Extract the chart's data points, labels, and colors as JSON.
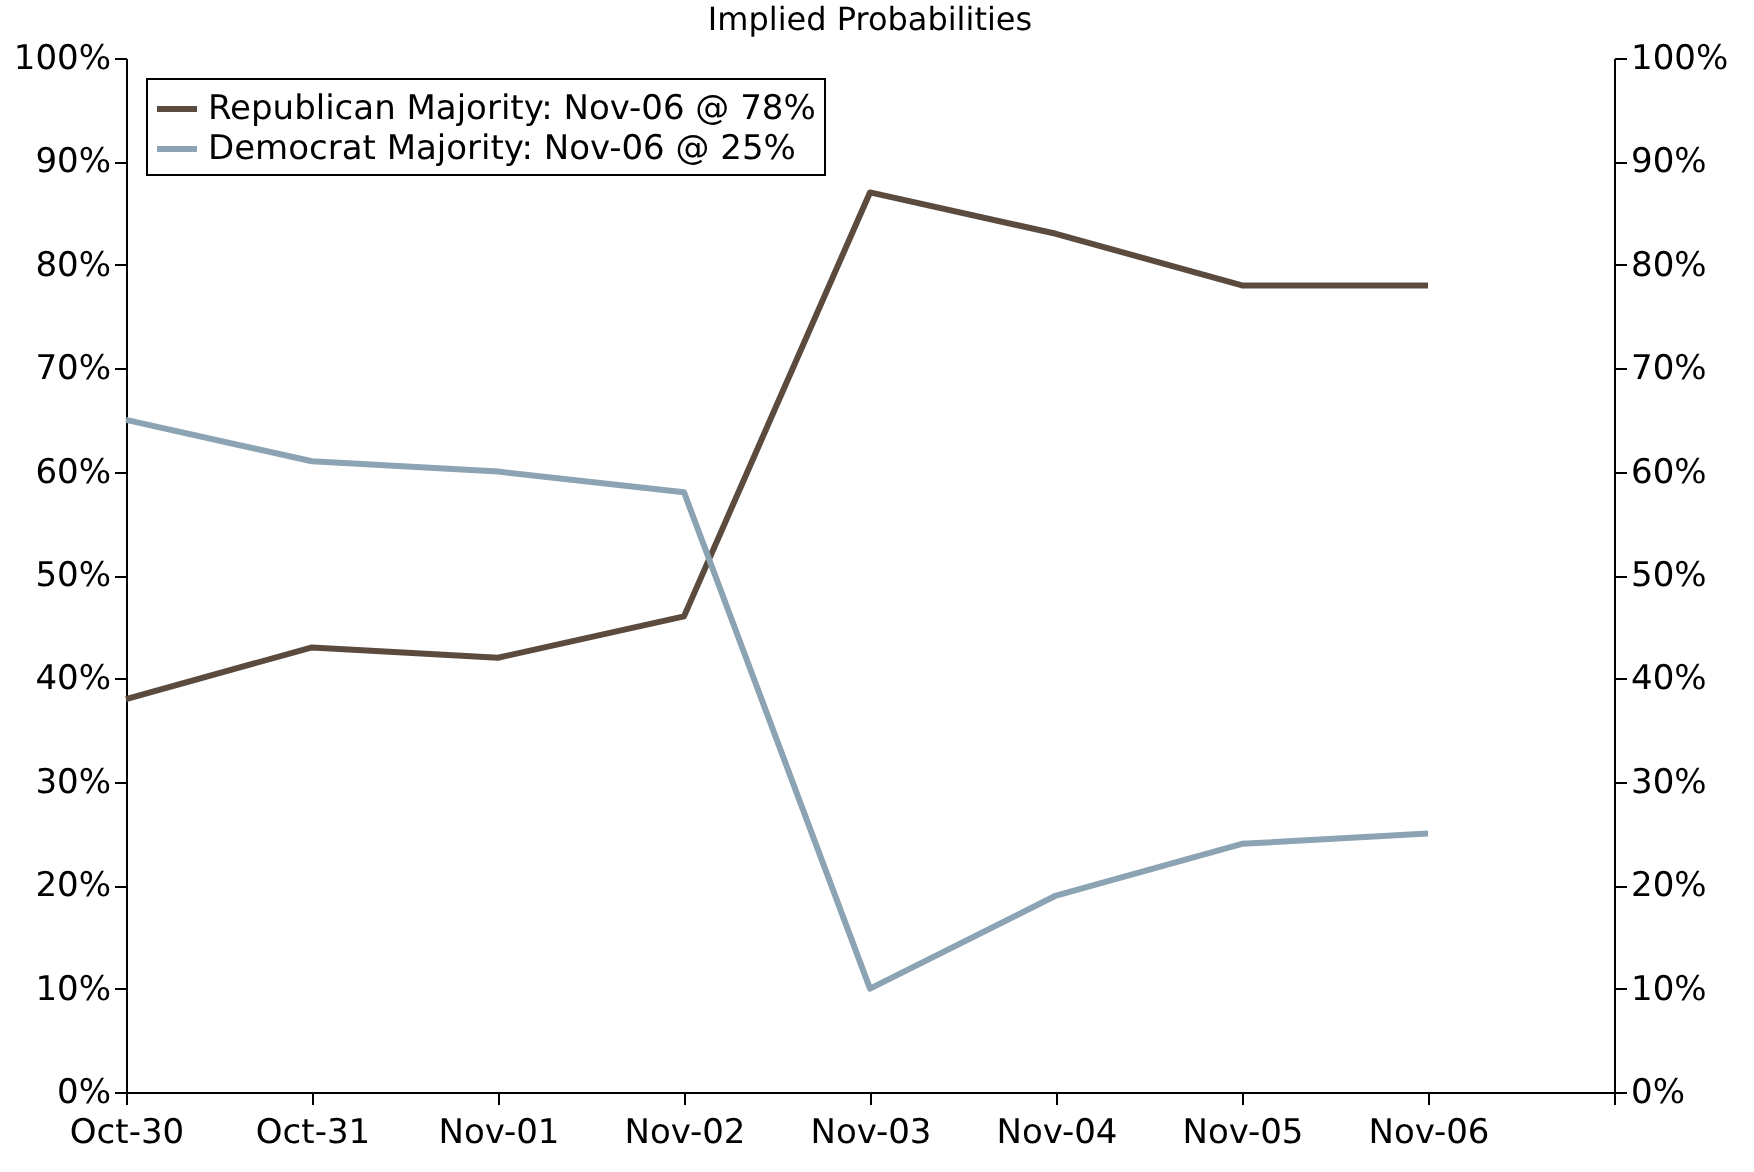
{
  "chart_data": {
    "type": "line",
    "title": "Implied Probabilities",
    "categories": [
      "Oct-30",
      "Oct-31",
      "Nov-01",
      "Nov-02",
      "Nov-03",
      "Nov-04",
      "Nov-05",
      "Nov-06",
      null
    ],
    "series": [
      {
        "name": "Republican Majority: Nov-06 @ 78%",
        "color": "#5b4a3e",
        "values": [
          38,
          43,
          42,
          46,
          87,
          83,
          78,
          78,
          null
        ]
      },
      {
        "name": "Democrat Majority: Nov-06 @ 25%",
        "color": "#8ba3b3",
        "values": [
          65,
          61,
          60,
          58,
          10,
          19,
          24,
          25,
          null
        ]
      }
    ],
    "ylim": [
      0,
      100
    ],
    "yticks": [
      {
        "value": 0,
        "label": "0%"
      },
      {
        "value": 10,
        "label": "10%"
      },
      {
        "value": 20,
        "label": "20%"
      },
      {
        "value": 30,
        "label": "30%"
      },
      {
        "value": 40,
        "label": "40%"
      },
      {
        "value": 50,
        "label": "50%"
      },
      {
        "value": 60,
        "label": "60%"
      },
      {
        "value": 70,
        "label": "70%"
      },
      {
        "value": 80,
        "label": "80%"
      },
      {
        "value": 90,
        "label": "90%"
      },
      {
        "value": 100,
        "label": "100%"
      }
    ],
    "y2lim": [
      0,
      100
    ],
    "y2ticks": [
      {
        "value": 0,
        "label": "0%"
      },
      {
        "value": 10,
        "label": "10%"
      },
      {
        "value": 20,
        "label": "20%"
      },
      {
        "value": 30,
        "label": "30%"
      },
      {
        "value": 40,
        "label": "40%"
      },
      {
        "value": 50,
        "label": "50%"
      },
      {
        "value": 60,
        "label": "60%"
      },
      {
        "value": 70,
        "label": "70%"
      },
      {
        "value": 80,
        "label": "80%"
      },
      {
        "value": 90,
        "label": "90%"
      },
      {
        "value": 100,
        "label": "100%"
      }
    ],
    "grid": false,
    "legend": "top left",
    "marker": "none",
    "line_style": "solid"
  }
}
